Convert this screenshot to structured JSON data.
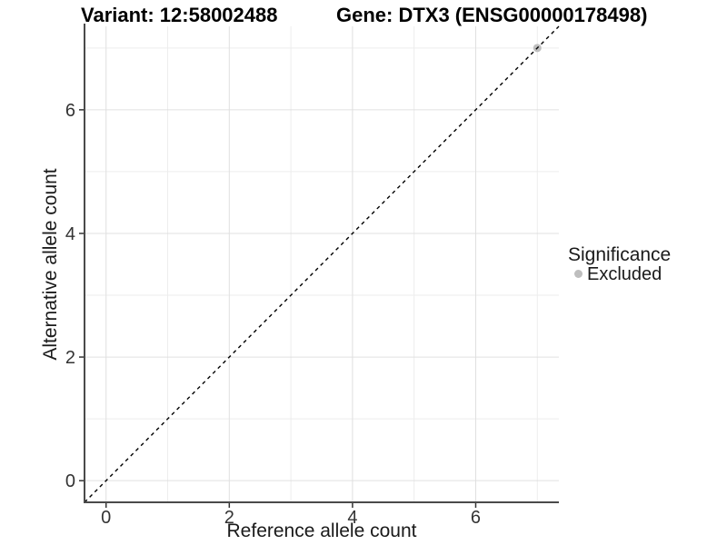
{
  "chart_data": {
    "type": "scatter",
    "titles": {
      "left": "Variant: 12:58002488",
      "right": "Gene: DTX3 (ENSG00000178498)"
    },
    "xlabel": "Reference allele count",
    "ylabel": "Alternative allele count",
    "xlim": [
      -0.35,
      7.35
    ],
    "ylim": [
      -0.35,
      7.35
    ],
    "x_ticks": [
      0,
      2,
      4,
      6
    ],
    "y_ticks": [
      0,
      2,
      4,
      6
    ],
    "x_minor": [
      1,
      3,
      5,
      7
    ],
    "y_minor": [
      1,
      3,
      5,
      7
    ],
    "grid": true,
    "points": [
      {
        "x": 7,
        "y": 7,
        "series": "Excluded"
      }
    ],
    "identity_line": {
      "slope": 1,
      "intercept": 0,
      "style": "dashed",
      "color": "#000000"
    },
    "legend": {
      "title": "Significance",
      "position": "right",
      "items": [
        {
          "label": "Excluded",
          "color": "#bebebe",
          "marker": "circle"
        }
      ]
    },
    "colors": {
      "background": "#ffffff",
      "axis_line": "#4a4a4a",
      "tick_mark": "#333333",
      "grid_major": "#e0e0e0",
      "grid_minor": "#ededed",
      "point": "#bebebe",
      "abline": "#000000"
    }
  }
}
